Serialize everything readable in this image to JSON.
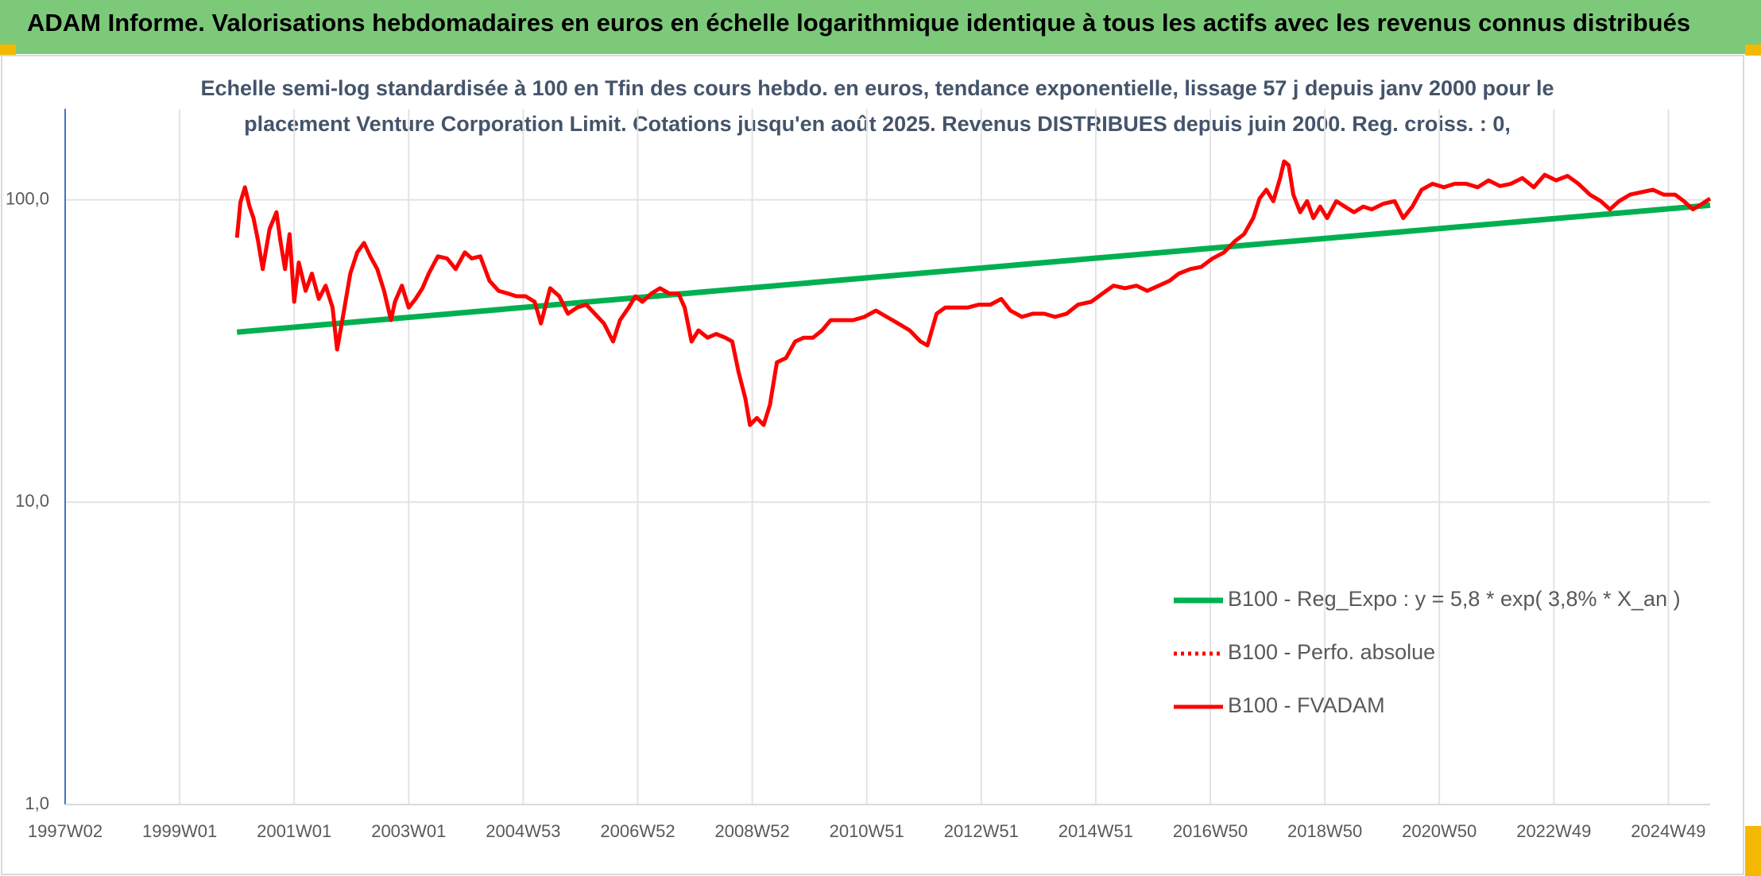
{
  "chart_data": {
    "type": "line",
    "title": "ADAM Informe. Valorisations hebdomadaires en euros en échelle logarithmique identique à tous les actifs avec les revenus connus distribués",
    "subtitle": [
      "Echelle semi-log standardisée à 100 en Tfin des cours hebdo. en euros, tendance exponentielle, lissage 57 j depuis janv 2000 pour le",
      "placement Venture Corporation Limit. Cotations jusqu'en août 2025. Revenus DISTRIBUES depuis juin 2000. Reg. croiss. : 0,"
    ],
    "log_y": true,
    "grid": true,
    "legend_position": "lower right",
    "xlim": [
      1997.0,
      2025.73
    ],
    "xticks": [
      {
        "value": 1997.0,
        "label": "1997W02"
      },
      {
        "value": 1999.0,
        "label": "1999W01"
      },
      {
        "value": 2001.0,
        "label": "2001W01"
      },
      {
        "value": 2003.0,
        "label": "2003W01"
      },
      {
        "value": 2005.0,
        "label": "2004W53"
      },
      {
        "value": 2007.0,
        "label": "2006W52"
      },
      {
        "value": 2009.0,
        "label": "2008W52"
      },
      {
        "value": 2011.0,
        "label": "2010W51"
      },
      {
        "value": 2013.0,
        "label": "2012W51"
      },
      {
        "value": 2015.0,
        "label": "2014W51"
      },
      {
        "value": 2017.0,
        "label": "2016W50"
      },
      {
        "value": 2019.0,
        "label": "2018W50"
      },
      {
        "value": 2021.0,
        "label": "2020W50"
      },
      {
        "value": 2023.0,
        "label": "2022W49"
      },
      {
        "value": 2025.0,
        "label": "2024W49"
      }
    ],
    "ylim": [
      1,
      200
    ],
    "yticks": [
      {
        "value": 1,
        "label": "1,0"
      },
      {
        "value": 10,
        "label": "10,0"
      },
      {
        "value": 100,
        "label": "100,0"
      }
    ],
    "series": [
      {
        "name": "B100 - Reg_Expo : y = 5,8 * exp( 3,8% *  X_an )",
        "color": "#00b050",
        "style": "solid",
        "x": [
          2000.0,
          2025.73
        ],
        "values": [
          36.5,
          96
        ]
      },
      {
        "name": "B100 - Perfo. absolue",
        "color": "#ff0000",
        "style": "dotted",
        "x": [],
        "values": []
      },
      {
        "name": "B100 - FVADAM",
        "color": "#ff0000",
        "style": "solid",
        "x": [
          2000.0,
          2000.06,
          2000.14,
          2000.22,
          2000.29,
          2000.37,
          2000.45,
          2000.57,
          2000.69,
          2000.76,
          2000.84,
          2000.92,
          2001.0,
          2001.08,
          2001.2,
          2001.31,
          2001.43,
          2001.55,
          2001.67,
          2001.75,
          2001.86,
          2001.98,
          2002.1,
          2002.22,
          2002.33,
          2002.45,
          2002.57,
          2002.69,
          2002.76,
          2002.88,
          2003.0,
          2003.12,
          2003.24,
          2003.35,
          2003.51,
          2003.67,
          2003.82,
          2003.98,
          2004.1,
          2004.25,
          2004.41,
          2004.57,
          2004.73,
          2004.88,
          2005.04,
          2005.2,
          2005.31,
          2005.47,
          2005.63,
          2005.78,
          2005.94,
          2006.1,
          2006.25,
          2006.41,
          2006.57,
          2006.69,
          2006.84,
          2006.96,
          2007.08,
          2007.24,
          2007.39,
          2007.55,
          2007.71,
          2007.82,
          2007.94,
          2008.06,
          2008.22,
          2008.37,
          2008.53,
          2008.65,
          2008.76,
          2008.88,
          2008.96,
          2009.08,
          2009.2,
          2009.31,
          2009.43,
          2009.59,
          2009.75,
          2009.9,
          2010.06,
          2010.22,
          2010.37,
          2010.57,
          2010.76,
          2010.96,
          2011.16,
          2011.35,
          2011.55,
          2011.75,
          2011.94,
          2012.06,
          2012.22,
          2012.37,
          2012.57,
          2012.76,
          2012.96,
          2013.16,
          2013.35,
          2013.51,
          2013.71,
          2013.9,
          2014.1,
          2014.29,
          2014.49,
          2014.69,
          2014.92,
          2015.12,
          2015.31,
          2015.51,
          2015.71,
          2015.9,
          2016.1,
          2016.29,
          2016.45,
          2016.65,
          2016.84,
          2017.04,
          2017.24,
          2017.43,
          2017.59,
          2017.75,
          2017.86,
          2017.98,
          2018.1,
          2018.22,
          2018.29,
          2018.37,
          2018.45,
          2018.57,
          2018.69,
          2018.8,
          2018.92,
          2019.04,
          2019.2,
          2019.35,
          2019.51,
          2019.67,
          2019.82,
          2020.02,
          2020.22,
          2020.37,
          2020.53,
          2020.69,
          2020.88,
          2021.08,
          2021.27,
          2021.47,
          2021.67,
          2021.86,
          2022.06,
          2022.25,
          2022.45,
          2022.65,
          2022.84,
          2023.04,
          2023.24,
          2023.43,
          2023.63,
          2023.82,
          2023.98,
          2024.14,
          2024.33,
          2024.53,
          2024.73,
          2024.92,
          2025.12,
          2025.27,
          2025.43,
          2025.59,
          2025.73
        ],
        "values": [
          75,
          98,
          110,
          95,
          87,
          73,
          59,
          80,
          91,
          73,
          59,
          77,
          46,
          62,
          50,
          57,
          47,
          52,
          44,
          32,
          42,
          57,
          67,
          72,
          65,
          59,
          50,
          40,
          46,
          52,
          44,
          47,
          51,
          57,
          65,
          64,
          59,
          67,
          64,
          65,
          54,
          50,
          49,
          48,
          48,
          46,
          39,
          51,
          48,
          42,
          44,
          45,
          42,
          39,
          34,
          40,
          44,
          48,
          46,
          49,
          51,
          49,
          49,
          44,
          34,
          37,
          35,
          36,
          35,
          34,
          27,
          22,
          18,
          19,
          18,
          21,
          29,
          30,
          34,
          35,
          35,
          37,
          40,
          40,
          40,
          41,
          43,
          41,
          39,
          37,
          34,
          33,
          42,
          44,
          44,
          44,
          45,
          45,
          47,
          43,
          41,
          42,
          42,
          41,
          42,
          45,
          46,
          49,
          52,
          51,
          52,
          50,
          52,
          54,
          57,
          59,
          60,
          64,
          67,
          73,
          77,
          87,
          101,
          108,
          99,
          118,
          134,
          130,
          104,
          91,
          99,
          87,
          95,
          87,
          99,
          95,
          91,
          95,
          93,
          97,
          99,
          87,
          95,
          108,
          113,
          110,
          113,
          113,
          110,
          116,
          111,
          113,
          118,
          110,
          121,
          116,
          120,
          113,
          104,
          99,
          93,
          99,
          104,
          106,
          108,
          104,
          104,
          99,
          93,
          97,
          101
        ]
      }
    ]
  }
}
